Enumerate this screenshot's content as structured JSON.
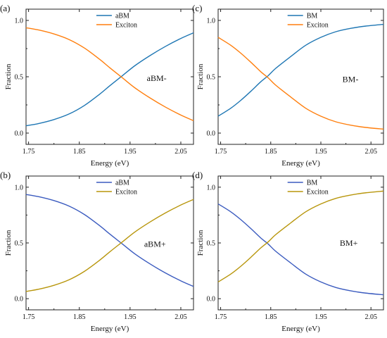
{
  "chart_data": [
    {
      "panel_label": "(a)",
      "type": "line",
      "xlabel": "Energy (eV)",
      "ylabel": "Fraction",
      "xlim": [
        1.745,
        2.075
      ],
      "ylim": [
        -0.1,
        1.1
      ],
      "xticks": [
        "1.75",
        "1.85",
        "1.95",
        "2.05"
      ],
      "yticks": [
        "0.0",
        "0.5",
        "1.0"
      ],
      "annotation": "aBM-",
      "grid": false,
      "legend_position": "top-center",
      "series": [
        {
          "name": "aBM",
          "color": "#1f77b4",
          "x": [
            1.745,
            1.77,
            1.8,
            1.83,
            1.86,
            1.89,
            1.91,
            1.935,
            1.96,
            1.99,
            2.02,
            2.05,
            2.075
          ],
          "y": [
            0.065,
            0.085,
            0.12,
            0.17,
            0.245,
            0.345,
            0.42,
            0.51,
            0.6,
            0.69,
            0.77,
            0.84,
            0.89
          ]
        },
        {
          "name": "Exciton",
          "color": "#ff7f0e",
          "x": [
            1.745,
            1.77,
            1.8,
            1.83,
            1.86,
            1.89,
            1.91,
            1.935,
            1.96,
            1.99,
            2.02,
            2.05,
            2.075
          ],
          "y": [
            0.935,
            0.915,
            0.88,
            0.83,
            0.755,
            0.655,
            0.58,
            0.49,
            0.4,
            0.31,
            0.23,
            0.16,
            0.11
          ]
        }
      ]
    },
    {
      "panel_label": "(c)",
      "type": "line",
      "xlabel": "Energy (eV)",
      "ylabel": "Fraction",
      "xlim": [
        1.745,
        2.075
      ],
      "ylim": [
        -0.1,
        1.1
      ],
      "xticks": [
        "1.75",
        "1.85",
        "1.95",
        "2.05"
      ],
      "yticks": [
        "0.0",
        "0.5",
        "1.0"
      ],
      "annotation": "BM-",
      "grid": false,
      "legend_position": "top-center",
      "series": [
        {
          "name": "BM",
          "color": "#1f77b4",
          "x": [
            1.745,
            1.77,
            1.79,
            1.81,
            1.83,
            1.845,
            1.86,
            1.89,
            1.92,
            1.95,
            1.98,
            2.01,
            2.04,
            2.075
          ],
          "y": [
            0.15,
            0.22,
            0.29,
            0.37,
            0.455,
            0.51,
            0.575,
            0.68,
            0.78,
            0.85,
            0.9,
            0.93,
            0.95,
            0.965
          ]
        },
        {
          "name": "Exciton",
          "color": "#ff7f0e",
          "x": [
            1.745,
            1.77,
            1.79,
            1.81,
            1.83,
            1.845,
            1.86,
            1.89,
            1.92,
            1.95,
            1.98,
            2.01,
            2.04,
            2.075
          ],
          "y": [
            0.85,
            0.78,
            0.71,
            0.63,
            0.545,
            0.49,
            0.425,
            0.32,
            0.22,
            0.15,
            0.1,
            0.07,
            0.05,
            0.035
          ]
        }
      ]
    },
    {
      "panel_label": "(b)",
      "type": "line",
      "xlabel": "Energy (eV)",
      "ylabel": "Fraction",
      "xlim": [
        1.745,
        2.075
      ],
      "ylim": [
        -0.1,
        1.1
      ],
      "xticks": [
        "1.75",
        "1.85",
        "1.95",
        "2.05"
      ],
      "yticks": [
        "0.0",
        "0.5",
        "1.0"
      ],
      "annotation": "aBM+",
      "grid": false,
      "legend_position": "top-center",
      "series": [
        {
          "name": "aBM",
          "color": "#3b5bbf",
          "x": [
            1.745,
            1.77,
            1.8,
            1.83,
            1.86,
            1.89,
            1.91,
            1.935,
            1.96,
            1.99,
            2.02,
            2.05,
            2.075
          ],
          "y": [
            0.935,
            0.915,
            0.88,
            0.83,
            0.755,
            0.655,
            0.58,
            0.49,
            0.4,
            0.31,
            0.23,
            0.16,
            0.11
          ]
        },
        {
          "name": "Exciton",
          "color": "#b8960c",
          "x": [
            1.745,
            1.77,
            1.8,
            1.83,
            1.86,
            1.89,
            1.91,
            1.935,
            1.96,
            1.99,
            2.02,
            2.05,
            2.075
          ],
          "y": [
            0.065,
            0.085,
            0.12,
            0.17,
            0.245,
            0.345,
            0.42,
            0.51,
            0.6,
            0.69,
            0.77,
            0.84,
            0.89
          ]
        }
      ]
    },
    {
      "panel_label": "(d)",
      "type": "line",
      "xlabel": "Energy (eV)",
      "ylabel": "Fraction",
      "xlim": [
        1.745,
        2.075
      ],
      "ylim": [
        -0.1,
        1.1
      ],
      "xticks": [
        "1.75",
        "1.85",
        "1.95",
        "2.05"
      ],
      "yticks": [
        "0.0",
        "0.5",
        "1.0"
      ],
      "annotation": "BM+",
      "grid": false,
      "legend_position": "top-center",
      "series": [
        {
          "name": "BM",
          "color": "#3b5bbf",
          "x": [
            1.745,
            1.77,
            1.79,
            1.81,
            1.83,
            1.845,
            1.86,
            1.89,
            1.92,
            1.95,
            1.98,
            2.01,
            2.04,
            2.075
          ],
          "y": [
            0.85,
            0.78,
            0.71,
            0.63,
            0.545,
            0.49,
            0.425,
            0.32,
            0.22,
            0.15,
            0.1,
            0.07,
            0.05,
            0.035
          ]
        },
        {
          "name": "Exciton",
          "color": "#b8960c",
          "x": [
            1.745,
            1.77,
            1.79,
            1.81,
            1.83,
            1.845,
            1.86,
            1.89,
            1.92,
            1.95,
            1.98,
            2.01,
            2.04,
            2.075
          ],
          "y": [
            0.15,
            0.22,
            0.29,
            0.37,
            0.455,
            0.51,
            0.575,
            0.68,
            0.78,
            0.85,
            0.9,
            0.93,
            0.95,
            0.965
          ]
        }
      ]
    }
  ]
}
